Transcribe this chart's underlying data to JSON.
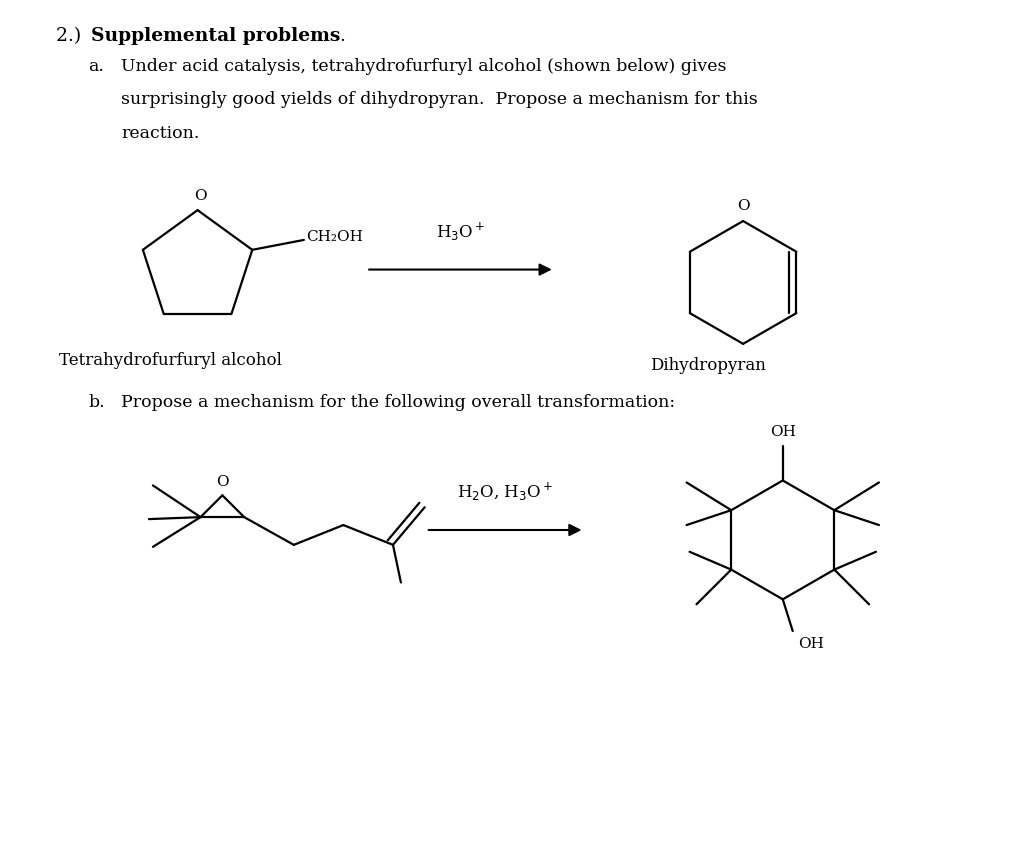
{
  "background_color": "#ffffff",
  "line_color": "#000000",
  "font_size_title": 13.5,
  "font_size_text": 12.5,
  "font_size_label": 12,
  "font_size_reagent": 12,
  "font_size_atom": 11,
  "label_thf": "Tetrahydrofurfuryl alcohol",
  "label_dhp": "Dihydropyran",
  "text_a1": "Under acid catalysis, tetrahydrofurfuryl alcohol (shown below) gives",
  "text_a2": "surprisingly good yields of dihydropyran.  Propose a mechanism for this",
  "text_a3": "reaction.",
  "text_b": "Propose a mechanism for the following overall transformation:"
}
